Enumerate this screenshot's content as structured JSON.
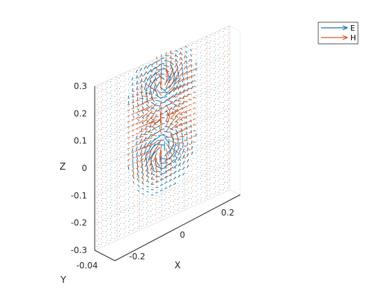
{
  "chart_data": {
    "type": "quiver3",
    "title": "",
    "xlabel": "X",
    "ylabel": "Y",
    "zlabel": "Z",
    "x_ticks": [
      "-0.2",
      "0",
      "0.2"
    ],
    "y_ticks": [
      "-0.04"
    ],
    "z_ticks": [
      "0.3",
      "0.2",
      "0.1",
      "0",
      "-0.1",
      "-0.2",
      "-0.3"
    ],
    "xlim": [
      -0.3,
      0.3
    ],
    "zlim": [
      -0.3,
      0.3
    ],
    "grid": true,
    "legend_position": "top-right",
    "series": [
      {
        "name": "E",
        "color": "#0072BD",
        "lobe_centers_z": [
          0.2,
          -0.05
        ],
        "lobe_centers_x": [
          0.0,
          0.0
        ]
      },
      {
        "name": "H",
        "color": "#D95319",
        "lobe_centers_z": [
          0.15,
          0.0
        ],
        "lobe_centers_x": [
          0.0,
          0.0
        ]
      }
    ]
  }
}
